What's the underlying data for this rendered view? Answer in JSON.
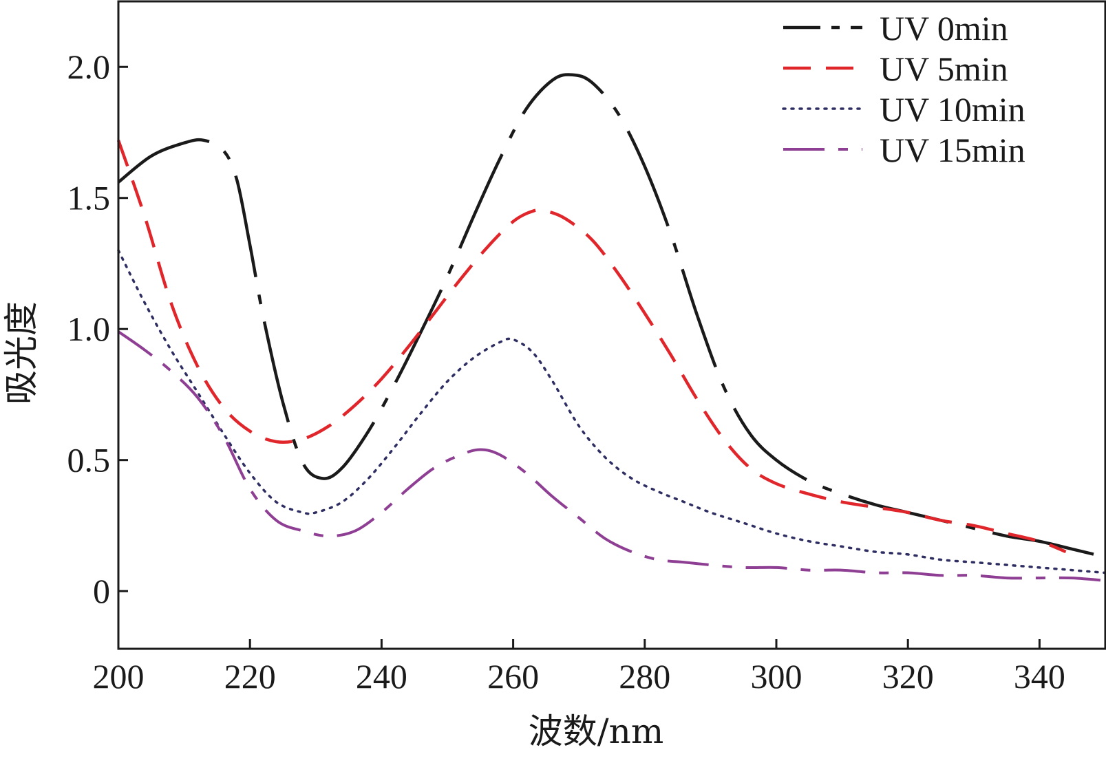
{
  "chart_data": {
    "type": "line",
    "title": "",
    "xlabel": "波数/nm",
    "ylabel": "吸光度",
    "xlim": [
      200,
      350
    ],
    "ylim": [
      -0.22,
      2.25
    ],
    "xticks": [
      200,
      220,
      240,
      260,
      280,
      300,
      320,
      340
    ],
    "xtick_labels": [
      "200",
      "220",
      "240",
      "260",
      "280",
      "300",
      "320",
      "340"
    ],
    "yticks": [
      0,
      0.5,
      1.0,
      1.5,
      2.0
    ],
    "ytick_labels": [
      "0",
      "0.5",
      "1.0",
      "1.5",
      "2.0"
    ],
    "grid": false,
    "legend_position": "top-right",
    "series": [
      {
        "name": "UV 0min",
        "color": "#1a1a1a",
        "style": "dashdot-long",
        "x": [
          200,
          205,
          210,
          213,
          216,
          218,
          220,
          222,
          225,
          228,
          231,
          234,
          238,
          242,
          246,
          250,
          254,
          258,
          262,
          266,
          269,
          272,
          276,
          280,
          284,
          288,
          292,
          296,
          300,
          305,
          310,
          315,
          320,
          325,
          330,
          335,
          340,
          345,
          350
        ],
        "y": [
          1.56,
          1.66,
          1.71,
          1.72,
          1.68,
          1.57,
          1.32,
          1.05,
          0.72,
          0.49,
          0.43,
          0.47,
          0.61,
          0.79,
          0.99,
          1.2,
          1.43,
          1.65,
          1.84,
          1.95,
          1.97,
          1.94,
          1.82,
          1.62,
          1.36,
          1.05,
          0.78,
          0.6,
          0.5,
          0.42,
          0.37,
          0.33,
          0.3,
          0.27,
          0.24,
          0.21,
          0.19,
          0.16,
          0.13
        ]
      },
      {
        "name": "UV 5min",
        "color": "#e0262b",
        "style": "dashed",
        "x": [
          200,
          204,
          208,
          212,
          216,
          220,
          224,
          228,
          232,
          236,
          240,
          244,
          248,
          252,
          256,
          260,
          263,
          265,
          268,
          272,
          276,
          280,
          284,
          288,
          292,
          296,
          300,
          305,
          310,
          315,
          320,
          325,
          330,
          335,
          340,
          344
        ],
        "y": [
          1.72,
          1.43,
          1.1,
          0.86,
          0.7,
          0.61,
          0.57,
          0.58,
          0.63,
          0.71,
          0.81,
          0.93,
          1.06,
          1.19,
          1.31,
          1.41,
          1.45,
          1.45,
          1.42,
          1.34,
          1.21,
          1.06,
          0.9,
          0.73,
          0.58,
          0.47,
          0.41,
          0.37,
          0.34,
          0.32,
          0.3,
          0.27,
          0.25,
          0.22,
          0.19,
          0.15
        ]
      },
      {
        "name": "UV 10min",
        "color": "#2e2e63",
        "style": "dotted",
        "x": [
          200,
          204,
          208,
          212,
          216,
          220,
          224,
          228,
          230,
          234,
          238,
          242,
          246,
          250,
          254,
          258,
          260,
          263,
          266,
          270,
          274,
          278,
          282,
          286,
          290,
          295,
          300,
          305,
          310,
          315,
          320,
          325,
          330,
          335,
          340,
          345,
          350
        ],
        "y": [
          1.3,
          1.1,
          0.92,
          0.76,
          0.6,
          0.45,
          0.34,
          0.3,
          0.3,
          0.34,
          0.43,
          0.55,
          0.68,
          0.8,
          0.89,
          0.95,
          0.96,
          0.91,
          0.8,
          0.63,
          0.51,
          0.43,
          0.38,
          0.34,
          0.3,
          0.26,
          0.22,
          0.19,
          0.17,
          0.15,
          0.14,
          0.12,
          0.11,
          0.1,
          0.09,
          0.08,
          0.07
        ]
      },
      {
        "name": "UV 15min",
        "color": "#8e3f94",
        "style": "dashdot",
        "x": [
          200,
          204,
          208,
          212,
          216,
          220,
          224,
          228,
          232,
          236,
          240,
          244,
          248,
          252,
          255,
          258,
          262,
          266,
          270,
          274,
          278,
          282,
          286,
          290,
          295,
          300,
          305,
          310,
          315,
          320,
          325,
          330,
          335,
          340,
          345,
          350
        ],
        "y": [
          0.99,
          0.92,
          0.84,
          0.74,
          0.59,
          0.39,
          0.27,
          0.23,
          0.21,
          0.23,
          0.3,
          0.39,
          0.47,
          0.52,
          0.54,
          0.52,
          0.45,
          0.36,
          0.28,
          0.2,
          0.15,
          0.12,
          0.11,
          0.1,
          0.09,
          0.09,
          0.08,
          0.08,
          0.07,
          0.07,
          0.06,
          0.06,
          0.05,
          0.05,
          0.05,
          0.04
        ]
      }
    ]
  }
}
